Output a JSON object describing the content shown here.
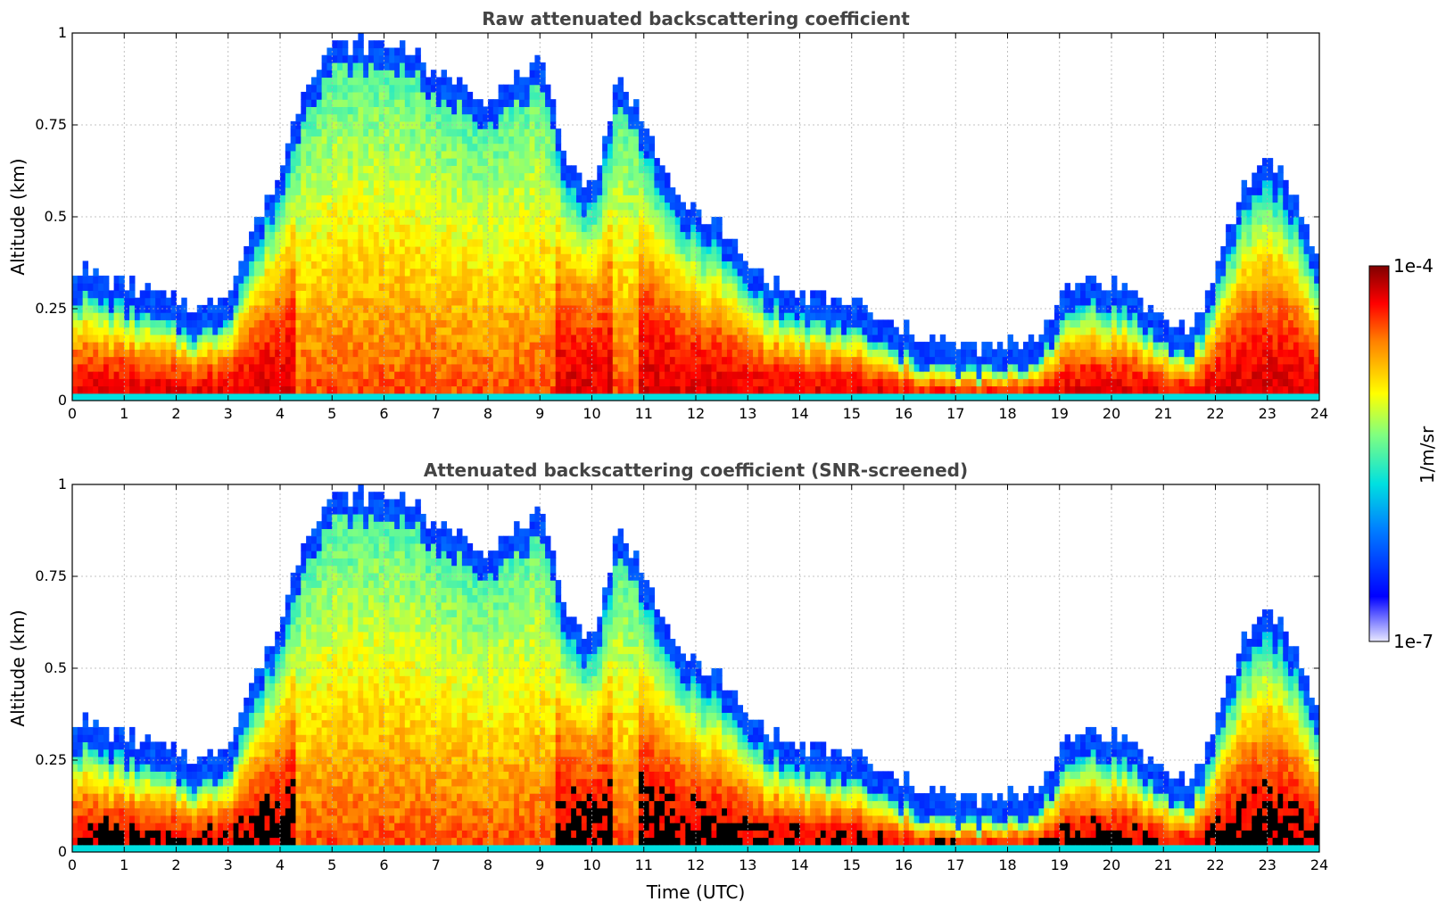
{
  "chart_data": [
    {
      "type": "heatmap",
      "title": "Raw attenuated backscattering coefficient",
      "xlabel": "",
      "ylabel": "Altitude (km)",
      "xlim": [
        0,
        24
      ],
      "ylim": [
        0,
        1
      ],
      "x_ticks": [
        "0",
        "1",
        "2",
        "3",
        "4",
        "5",
        "6",
        "7",
        "8",
        "9",
        "10",
        "11",
        "12",
        "13",
        "14",
        "15",
        "16",
        "17",
        "18",
        "19",
        "20",
        "21",
        "22",
        "23",
        "24"
      ],
      "y_ticks": [
        "0",
        "0.25",
        "0.5",
        "0.75",
        "1"
      ],
      "grid": true,
      "screened": false,
      "colormap": "jet",
      "color_scale": "log",
      "clim": [
        "1e-7",
        "1e-4"
      ],
      "boundary_layer_top_km": [
        0.29,
        0.27,
        0.25,
        0.22,
        0.2,
        0.18,
        0.23,
        0.4,
        0.55,
        0.8,
        0.9,
        0.9,
        0.9,
        0.9,
        0.8,
        0.8,
        0.75,
        0.8,
        0.85,
        0.6,
        0.5,
        0.8,
        0.7,
        0.5,
        0.45,
        0.4,
        0.3,
        0.25,
        0.22,
        0.2,
        0.2,
        0.15,
        0.12,
        0.1,
        0.08,
        0.08,
        0.08,
        0.1,
        0.2,
        0.27,
        0.25,
        0.22,
        0.15,
        0.12,
        0.27,
        0.5,
        0.6,
        0.5,
        0.3
      ]
    },
    {
      "type": "heatmap",
      "title": "Attenuated backscattering coefficient (SNR-screened)",
      "xlabel": "Time (UTC)",
      "ylabel": "Altitude (km)",
      "xlim": [
        0,
        24
      ],
      "ylim": [
        0,
        1
      ],
      "x_ticks": [
        "0",
        "1",
        "2",
        "3",
        "4",
        "5",
        "6",
        "7",
        "8",
        "9",
        "10",
        "11",
        "12",
        "13",
        "14",
        "15",
        "16",
        "17",
        "18",
        "19",
        "20",
        "21",
        "22",
        "23",
        "24"
      ],
      "y_ticks": [
        "0",
        "0.25",
        "0.5",
        "0.75",
        "1"
      ],
      "grid": true,
      "screened": true,
      "colormap": "jet",
      "color_scale": "log",
      "clim": [
        "1e-7",
        "1e-4"
      ],
      "boundary_layer_top_km": [
        0.29,
        0.27,
        0.25,
        0.22,
        0.2,
        0.18,
        0.23,
        0.4,
        0.55,
        0.8,
        0.9,
        0.9,
        0.9,
        0.9,
        0.8,
        0.8,
        0.75,
        0.8,
        0.85,
        0.6,
        0.5,
        0.8,
        0.7,
        0.5,
        0.45,
        0.4,
        0.3,
        0.25,
        0.22,
        0.2,
        0.2,
        0.15,
        0.12,
        0.1,
        0.08,
        0.08,
        0.08,
        0.1,
        0.2,
        0.27,
        0.25,
        0.22,
        0.15,
        0.12,
        0.27,
        0.5,
        0.6,
        0.5,
        0.3
      ]
    }
  ],
  "colorbar": {
    "label": "1/m/sr",
    "max_label": "1e-4",
    "min_label": "1e-7",
    "colormap": "jet"
  }
}
